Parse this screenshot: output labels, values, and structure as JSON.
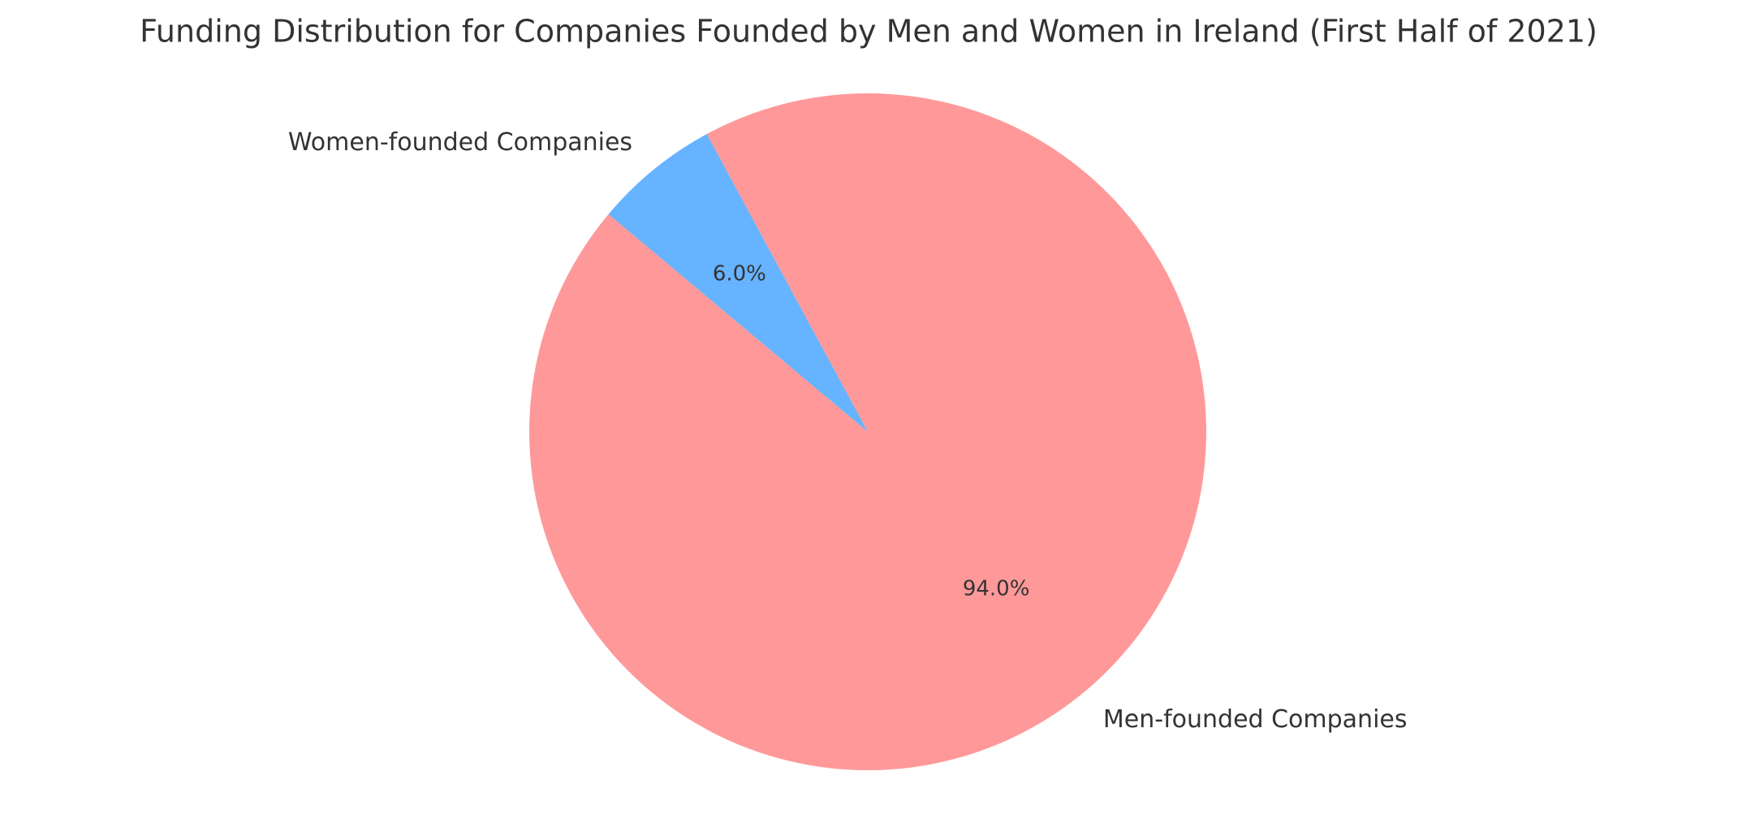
{
  "chart_data": {
    "type": "pie",
    "title": "Funding Distribution for Companies Founded by Men and Women in Ireland (First Half of 2021)",
    "categories": [
      "Men-founded Companies",
      "Women-founded Companies"
    ],
    "values": [
      94.0,
      6.0
    ],
    "value_labels": [
      "94.0%",
      "6.0%"
    ],
    "colors": [
      "#ff9999",
      "#66b3ff"
    ],
    "startangle": 140
  }
}
